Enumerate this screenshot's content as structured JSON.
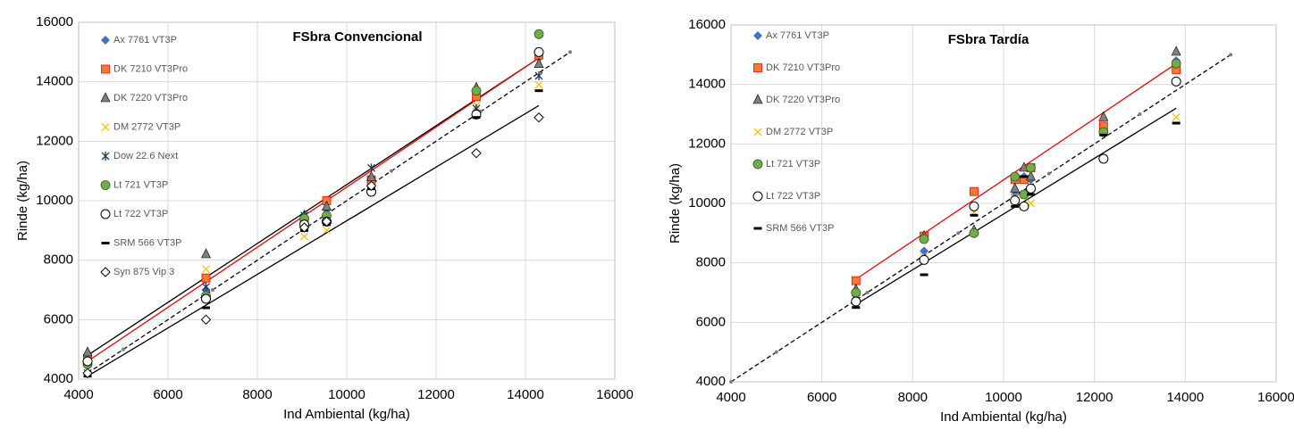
{
  "chart_data": [
    {
      "type": "scatter",
      "title": "FSbra Convencional",
      "xlabel": "Ind Ambiental (kg/ha)",
      "ylabel": "Rinde (kg/ha)",
      "xlim": [
        4000,
        16000
      ],
      "ylim": [
        4000,
        16000
      ],
      "xticks": [
        4000,
        6000,
        8000,
        10000,
        12000,
        14000,
        16000
      ],
      "yticks": [
        4000,
        6000,
        8000,
        10000,
        12000,
        14000,
        16000
      ],
      "grid": true,
      "legend": "upper left",
      "x": [
        4200,
        6850,
        9050,
        9550,
        10550,
        12900,
        14300
      ],
      "series": [
        {
          "name": "Ax 7761 VT3P",
          "color": "#4472c4",
          "marker": "diamond",
          "values": [
            4200,
            7000,
            9400,
            9700,
            10700,
            13000,
            14800
          ]
        },
        {
          "name": "DK 7210 VT3Pro",
          "color": "#ed7d31",
          "marker": "square",
          "values": [
            4700,
            7400,
            9300,
            10000,
            10700,
            13500,
            14900
          ]
        },
        {
          "name": "DK 7220 VT3Pro",
          "color": "#7f7f7f",
          "marker": "triangle",
          "values": [
            4900,
            8200,
            9500,
            9800,
            10800,
            13800,
            14600
          ]
        },
        {
          "name": "DM 2772 VT3P",
          "color": "#ffc000",
          "marker": "x",
          "values": [
            4600,
            7700,
            8800,
            9000,
            10400,
            13200,
            13900
          ]
        },
        {
          "name": "Dow 22.6 Next",
          "color": "#1f3864",
          "marker": "asterisk",
          "values": [
            4200,
            7100,
            9500,
            9400,
            11100,
            13100,
            14200
          ]
        },
        {
          "name": "Lt 721 VT3P",
          "color": "#70ad47",
          "marker": "circle",
          "values": [
            4500,
            6800,
            9400,
            9500,
            10300,
            13700,
            15600
          ]
        },
        {
          "name": "Lt 722 VT3P",
          "color": "#000000",
          "marker": "circle-open",
          "values": [
            4600,
            6700,
            9200,
            9300,
            10300,
            12900,
            15000
          ]
        },
        {
          "name": "SRM 566 VT3P",
          "color": "#000000",
          "marker": "dash",
          "values": [
            4100,
            6400,
            9000,
            9200,
            10400,
            12800,
            13700
          ]
        },
        {
          "name": "Syn 875 Vip 3",
          "color": "#000000",
          "marker": "diamond-open",
          "values": [
            4200,
            6000,
            9100,
            9300,
            10500,
            11600,
            12800
          ]
        }
      ],
      "lines": [
        {
          "color": "#000000",
          "dash": false,
          "markers": false,
          "x": [
            4200,
            14300
          ],
          "y": [
            4800,
            14800
          ]
        },
        {
          "color": "#ff0000",
          "dash": false,
          "markers": false,
          "x": [
            4200,
            14300
          ],
          "y": [
            4600,
            14800
          ]
        },
        {
          "color": "#000000",
          "dash": false,
          "markers": false,
          "x": [
            4200,
            14300
          ],
          "y": [
            4100,
            13200
          ]
        },
        {
          "color": "#000000",
          "dash": true,
          "markers": true,
          "x": [
            4200,
            5000,
            7000,
            9000,
            11000,
            13000,
            15000
          ],
          "y": [
            4200,
            5000,
            7000,
            9000,
            11000,
            13000,
            15000
          ]
        }
      ]
    },
    {
      "type": "scatter",
      "title": "FSbra Tardía",
      "xlabel": "Ind Ambiental (kg/ha)",
      "ylabel": "Rinde (kg/ha)",
      "xlim": [
        4000,
        16000
      ],
      "ylim": [
        4000,
        16000
      ],
      "xticks": [
        4000,
        6000,
        8000,
        10000,
        12000,
        14000,
        16000
      ],
      "yticks": [
        4000,
        6000,
        8000,
        10000,
        12000,
        14000,
        16000
      ],
      "grid": true,
      "legend": "upper left",
      "x": [
        6750,
        8250,
        9350,
        10250,
        10450,
        10600,
        12200,
        13800
      ],
      "series": [
        {
          "name": "Ax 7761 VT3P",
          "color": "#4472c4",
          "marker": "diamond",
          "values": [
            6900,
            8400,
            9900,
            10300,
            10900,
            10800,
            12500,
            14800
          ]
        },
        {
          "name": "DK 7210 VT3Pro",
          "color": "#ed7d31",
          "marker": "square",
          "values": [
            7400,
            8900,
            10400,
            10800,
            10800,
            11200,
            12600,
            14500
          ]
        },
        {
          "name": "DK 7220 VT3Pro",
          "color": "#7f7f7f",
          "marker": "triangle",
          "values": [
            7100,
            8900,
            9100,
            10500,
            11200,
            10900,
            12900,
            15100
          ]
        },
        {
          "name": "DM 2772 VT3P",
          "color": "#ffc000",
          "marker": "x",
          "values": [
            6800,
            8200,
            9700,
            10200,
            10300,
            10000,
            11500,
            12900
          ]
        },
        {
          "name": "Lt 721 VT3P",
          "color": "#70ad47",
          "marker": "circle",
          "values": [
            7000,
            8800,
            9000,
            10900,
            10300,
            11200,
            12400,
            14700
          ]
        },
        {
          "name": "Lt 722 VT3P",
          "color": "#000000",
          "marker": "circle-open",
          "values": [
            6700,
            8100,
            9900,
            10100,
            9900,
            10500,
            11500,
            14100
          ]
        },
        {
          "name": "SRM 566 VT3P",
          "color": "#000000",
          "marker": "dash",
          "values": [
            6500,
            7600,
            9600,
            9900,
            10900,
            10300,
            12300,
            12700
          ]
        }
      ],
      "lines": [
        {
          "color": "#ff0000",
          "dash": false,
          "markers": false,
          "x": [
            6750,
            13800
          ],
          "y": [
            7450,
            14700
          ]
        },
        {
          "color": "#000000",
          "dash": false,
          "markers": false,
          "x": [
            6750,
            13800
          ],
          "y": [
            6600,
            13200
          ]
        },
        {
          "color": "#000000",
          "dash": true,
          "markers": true,
          "x": [
            4000,
            5000,
            7000,
            9000,
            11000,
            13000,
            15000
          ],
          "y": [
            4000,
            5000,
            7000,
            9000,
            11000,
            13000,
            15000
          ]
        }
      ]
    }
  ]
}
